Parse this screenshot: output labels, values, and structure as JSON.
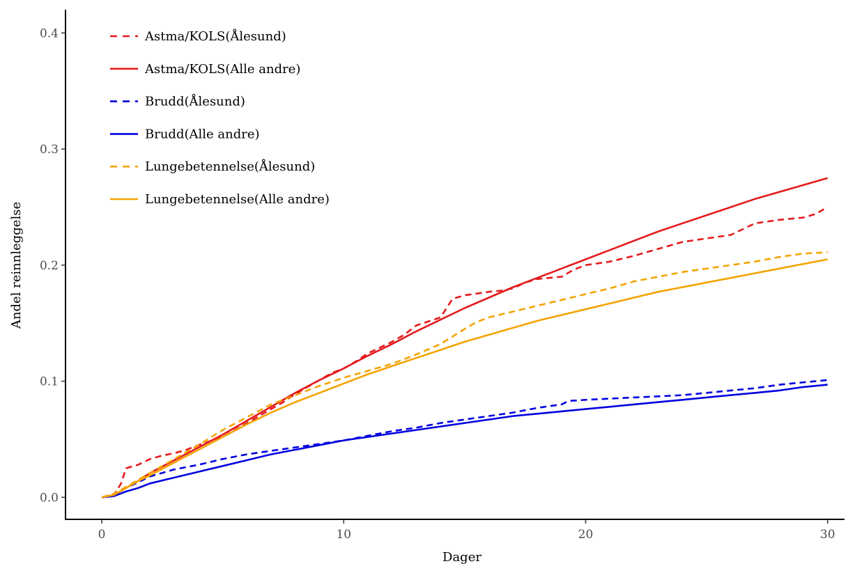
{
  "chart_data": {
    "type": "line",
    "title": "",
    "xlabel": "Dager",
    "ylabel": "Andel reinnleggelse",
    "xlim": [
      -1.5,
      30.7
    ],
    "ylim": [
      -0.019,
      0.42
    ],
    "x_ticks": [
      0,
      10,
      20,
      30
    ],
    "y_ticks": [
      0.0,
      0.1,
      0.2,
      0.3,
      0.4
    ],
    "x_tick_labels": [
      "0",
      "10",
      "20",
      "30"
    ],
    "y_tick_labels": [
      "0.0",
      "0.1",
      "0.2",
      "0.3",
      "0.4"
    ],
    "grid": false,
    "legend_position": "top-left",
    "series": [
      {
        "name": "Astma/KOLS(Ålesund)",
        "color": "#e41a1c",
        "dash": "dashed",
        "x": [
          0,
          0.5,
          0.8,
          1,
          1.5,
          2,
          2.5,
          3,
          3.5,
          4,
          5,
          5.5,
          6,
          7,
          7.5,
          8,
          8.5,
          9,
          9.5,
          10,
          10.5,
          11,
          11.5,
          12,
          12.5,
          13,
          14,
          14.5,
          15,
          16,
          16.5,
          17,
          17.5,
          18,
          19,
          19.5,
          20,
          21,
          22,
          23,
          24,
          25,
          26,
          27,
          28,
          29,
          29.5,
          30
        ],
        "y": [
          0,
          0.002,
          0.012,
          0.025,
          0.028,
          0.033,
          0.036,
          0.038,
          0.041,
          0.045,
          0.052,
          0.058,
          0.064,
          0.076,
          0.082,
          0.089,
          0.095,
          0.101,
          0.107,
          0.111,
          0.117,
          0.124,
          0.129,
          0.134,
          0.14,
          0.148,
          0.155,
          0.171,
          0.174,
          0.177,
          0.178,
          0.18,
          0.185,
          0.188,
          0.19,
          0.196,
          0.2,
          0.203,
          0.208,
          0.214,
          0.22,
          0.223,
          0.226,
          0.236,
          0.239,
          0.241,
          0.244,
          0.25
        ]
      },
      {
        "name": "Astma/KOLS(Alle andre)",
        "color": "#e41a1c",
        "dash": "solid",
        "x": [
          0,
          0.5,
          1,
          1.5,
          2,
          3,
          4,
          5,
          6,
          7,
          8,
          9,
          10,
          11,
          12,
          13,
          14,
          15,
          16,
          17,
          18,
          19,
          20,
          21,
          22,
          23,
          24,
          25,
          26,
          27,
          28,
          29,
          30
        ],
        "y": [
          0,
          0.002,
          0.008,
          0.014,
          0.021,
          0.032,
          0.043,
          0.054,
          0.066,
          0.078,
          0.09,
          0.101,
          0.111,
          0.122,
          0.132,
          0.143,
          0.153,
          0.163,
          0.172,
          0.181,
          0.189,
          0.197,
          0.205,
          0.213,
          0.221,
          0.229,
          0.236,
          0.243,
          0.25,
          0.257,
          0.263,
          0.269,
          0.275
        ]
      },
      {
        "name": "Brudd(Ålesund)",
        "color": "#0000e0",
        "dash": "dashed",
        "x": [
          0,
          0.5,
          1,
          1.5,
          2,
          3,
          4,
          5,
          6,
          7,
          8,
          9,
          10,
          11,
          12,
          13,
          14,
          15,
          16,
          17,
          18,
          19,
          19.3,
          20,
          21,
          22,
          23,
          24,
          25,
          26,
          27,
          28,
          29,
          30
        ],
        "y": [
          0,
          0.002,
          0.008,
          0.013,
          0.018,
          0.024,
          0.028,
          0.033,
          0.037,
          0.04,
          0.043,
          0.046,
          0.049,
          0.053,
          0.057,
          0.06,
          0.064,
          0.067,
          0.07,
          0.073,
          0.077,
          0.08,
          0.083,
          0.084,
          0.085,
          0.086,
          0.087,
          0.088,
          0.09,
          0.092,
          0.094,
          0.097,
          0.099,
          0.101
        ]
      },
      {
        "name": "Brudd(Alle andre)",
        "color": "#0000e0",
        "dash": "solid",
        "x": [
          0,
          0.5,
          1,
          1.5,
          2,
          3,
          4,
          5,
          6,
          7,
          8,
          9,
          10,
          11,
          12,
          13,
          14,
          15,
          16,
          17,
          18,
          19,
          20,
          21,
          22,
          23,
          24,
          25,
          26,
          27,
          28,
          29,
          30
        ],
        "y": [
          0,
          0.001,
          0.005,
          0.008,
          0.012,
          0.017,
          0.022,
          0.027,
          0.032,
          0.037,
          0.041,
          0.045,
          0.049,
          0.052,
          0.055,
          0.058,
          0.061,
          0.064,
          0.067,
          0.07,
          0.072,
          0.074,
          0.076,
          0.078,
          0.08,
          0.082,
          0.084,
          0.086,
          0.088,
          0.09,
          0.092,
          0.095,
          0.097
        ]
      },
      {
        "name": "Lungebetennelse(Ålesund)",
        "color": "#f5a300",
        "dash": "dashed",
        "x": [
          0,
          0.5,
          1,
          1.5,
          2,
          3,
          4,
          5,
          6,
          7,
          8,
          9,
          10,
          11,
          12,
          13,
          14,
          15,
          15.5,
          16,
          17,
          18,
          19,
          20,
          21,
          22,
          23,
          24,
          25,
          26,
          27,
          28,
          29,
          30
        ],
        "y": [
          0,
          0.003,
          0.009,
          0.015,
          0.021,
          0.033,
          0.045,
          0.058,
          0.069,
          0.08,
          0.088,
          0.096,
          0.103,
          0.109,
          0.115,
          0.123,
          0.132,
          0.145,
          0.151,
          0.155,
          0.16,
          0.165,
          0.17,
          0.175,
          0.18,
          0.186,
          0.19,
          0.194,
          0.197,
          0.2,
          0.203,
          0.207,
          0.21,
          0.211
        ]
      },
      {
        "name": "Lungebetennelse(Alle andre)",
        "color": "#f5a300",
        "dash": "solid",
        "x": [
          0,
          0.5,
          1,
          1.5,
          2,
          3,
          4,
          5,
          6,
          7,
          8,
          9,
          10,
          11,
          12,
          13,
          14,
          15,
          16,
          17,
          18,
          19,
          20,
          21,
          22,
          23,
          24,
          25,
          26,
          27,
          28,
          29,
          30
        ],
        "y": [
          0,
          0.002,
          0.008,
          0.014,
          0.019,
          0.03,
          0.041,
          0.052,
          0.063,
          0.073,
          0.082,
          0.09,
          0.098,
          0.106,
          0.113,
          0.12,
          0.127,
          0.134,
          0.14,
          0.146,
          0.152,
          0.157,
          0.162,
          0.167,
          0.172,
          0.177,
          0.181,
          0.185,
          0.189,
          0.193,
          0.197,
          0.201,
          0.205
        ]
      }
    ]
  }
}
